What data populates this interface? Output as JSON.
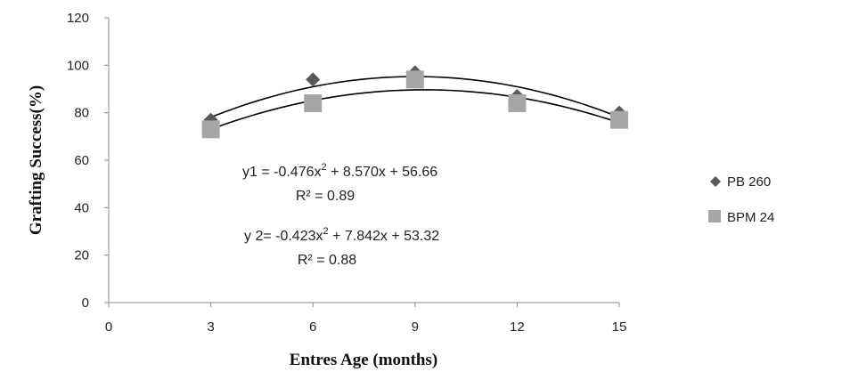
{
  "chart_data": {
    "type": "scatter",
    "xlabel": "Entres Age (months)",
    "ylabel": "Grafting Success(%)",
    "xlim": [
      0,
      15
    ],
    "ylim": [
      0,
      120
    ],
    "x_ticks": [
      "0",
      "3",
      "6",
      "9",
      "12",
      "15"
    ],
    "y_ticks": [
      "0",
      "20",
      "40",
      "60",
      "80",
      "100",
      "120"
    ],
    "grid": false,
    "legend_position": "right",
    "series": [
      {
        "name": "PB 260",
        "marker": "diamond",
        "color": "#595959",
        "x": [
          3,
          6,
          9,
          12,
          15
        ],
        "y": [
          77,
          94,
          97,
          87,
          80
        ],
        "trend": {
          "a": -0.476,
          "b": 8.57,
          "c": 56.66
        }
      },
      {
        "name": "BPM 24",
        "marker": "square",
        "color": "#a6a6a6",
        "x": [
          3,
          6,
          9,
          12,
          15
        ],
        "y": [
          73,
          84,
          94,
          84,
          77
        ],
        "trend": {
          "a": -0.423,
          "b": 7.842,
          "c": 53.32
        }
      }
    ],
    "annotations": {
      "eq1_prefix": "y1 = -0.476x",
      "eq1_exp": "2",
      "eq1_suffix": " + 8.570x + 56.66",
      "r2_1": "R² = 0.89",
      "eq2_prefix": "y 2= -0.423x",
      "eq2_exp": "2",
      "eq2_suffix": " + 7.842x + 53.32",
      "r2_2": "R² = 0.88"
    }
  }
}
